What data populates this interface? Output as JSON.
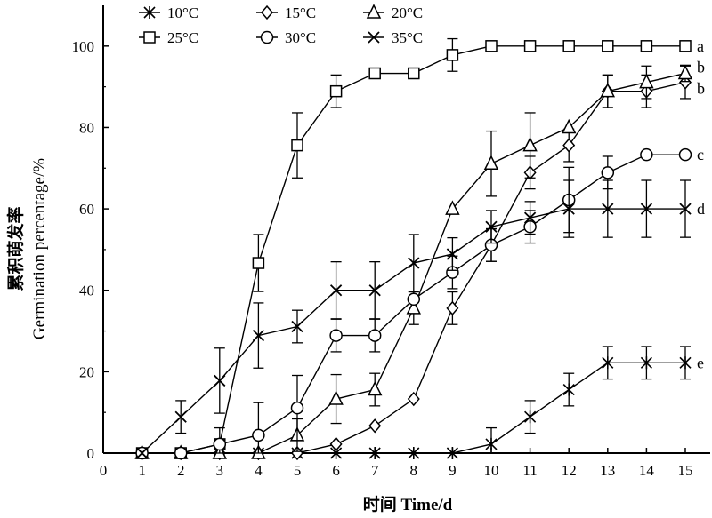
{
  "chart_data": {
    "type": "line",
    "xlabel": "时间 Time/d",
    "ylabel_cn": "累积萌发率",
    "ylabel_en": "Germination percentage/%",
    "xlim": [
      0,
      15
    ],
    "ylim": [
      0,
      110
    ],
    "xticks": [
      0,
      1,
      2,
      3,
      4,
      5,
      6,
      7,
      8,
      9,
      10,
      11,
      12,
      13,
      14,
      15
    ],
    "yticks": [
      0,
      20,
      40,
      60,
      80,
      100
    ],
    "grid": false,
    "legend_position": "top",
    "x": [
      1,
      2,
      3,
      4,
      5,
      6,
      7,
      8,
      9,
      10,
      11,
      12,
      13,
      14,
      15
    ],
    "series": [
      {
        "name": "10°C",
        "marker": "asterisk",
        "values": [
          0,
          0,
          0,
          0,
          0,
          0,
          0,
          0,
          0,
          2.2,
          8.9,
          15.6,
          22.2,
          22.2,
          22.2
        ],
        "errors": [
          0,
          0,
          0,
          0,
          0,
          0,
          0,
          0,
          0,
          4,
          4,
          4,
          4,
          4,
          4
        ],
        "end_label": "e"
      },
      {
        "name": "15°C",
        "marker": "diamond",
        "values": [
          0,
          0,
          0,
          0,
          0,
          2.2,
          6.7,
          13.3,
          35.6,
          51.1,
          68.9,
          75.6,
          88.9,
          88.9,
          91.1
        ],
        "errors": [
          0,
          0,
          0,
          0,
          0,
          0,
          0,
          0,
          4,
          4,
          4,
          4,
          4,
          4,
          4
        ],
        "end_label": "b"
      },
      {
        "name": "20°C",
        "marker": "triangle",
        "values": [
          0,
          0,
          0,
          0,
          4.4,
          13.3,
          15.6,
          35.6,
          60,
          71.1,
          75.6,
          80,
          88.9,
          91.1,
          93.3
        ],
        "errors": [
          0,
          0,
          0,
          0,
          4,
          6,
          4,
          4,
          0,
          8,
          8,
          0,
          4,
          4,
          2
        ],
        "end_label": "b"
      },
      {
        "name": "25°C",
        "marker": "square",
        "values": [
          0,
          0,
          2.2,
          46.7,
          75.6,
          88.9,
          93.3,
          93.3,
          97.8,
          100,
          100,
          100,
          100,
          100,
          100
        ],
        "errors": [
          0,
          0,
          0,
          7,
          8,
          4,
          0,
          0,
          4,
          0,
          0,
          0,
          0,
          0,
          0
        ],
        "end_label": "a"
      },
      {
        "name": "30°C",
        "marker": "circle",
        "values": [
          0,
          0,
          2.2,
          4.4,
          11.1,
          28.9,
          28.9,
          37.8,
          44.4,
          51.1,
          55.6,
          62.2,
          68.9,
          73.3,
          73.3
        ],
        "errors": [
          0,
          0,
          4,
          8,
          8,
          4,
          4,
          0,
          4,
          4,
          4,
          8,
          4,
          0,
          0
        ],
        "end_label": "c"
      },
      {
        "name": "35°C",
        "marker": "x",
        "values": [
          0,
          8.9,
          17.8,
          28.9,
          31.1,
          40,
          40,
          46.7,
          48.9,
          55.6,
          57.8,
          60,
          60,
          60,
          60
        ],
        "errors": [
          0,
          4,
          8,
          8,
          4,
          7,
          7,
          7,
          4,
          4,
          4,
          7,
          7,
          7,
          7
        ],
        "end_label": "d"
      }
    ]
  }
}
